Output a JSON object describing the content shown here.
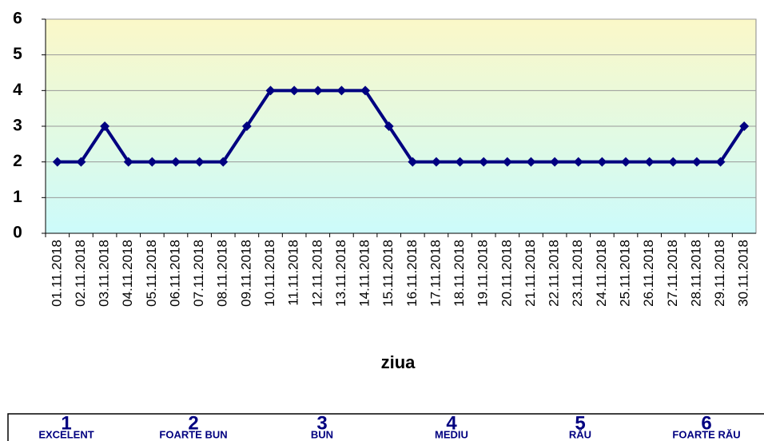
{
  "chart_data": {
    "type": "line",
    "x_label": "ziua",
    "categories": [
      "01.11.2018",
      "02.11.2018",
      "03.11.2018",
      "04.11.2018",
      "05.11.2018",
      "06.11.2018",
      "07.11.2018",
      "08.11.2018",
      "09.11.2018",
      "10.11.2018",
      "11.11.2018",
      "12.11.2018",
      "13.11.2018",
      "14.11.2018",
      "15.11.2018",
      "16.11.2018",
      "17.11.2018",
      "18.11.2018",
      "19.11.2018",
      "20.11.2018",
      "21.11.2018",
      "22.11.2018",
      "23.11.2018",
      "24.11.2018",
      "25.11.2018",
      "26.11.2018",
      "27.11.2018",
      "28.11.2018",
      "29.11.2018",
      "30.11.2018"
    ],
    "values": [
      2,
      2,
      3,
      2,
      2,
      2,
      2,
      2,
      3,
      4,
      4,
      4,
      4,
      4,
      3,
      2,
      2,
      2,
      2,
      2,
      2,
      2,
      2,
      2,
      2,
      2,
      2,
      2,
      2,
      3
    ],
    "color": "#000080",
    "ylim": [
      0,
      6
    ],
    "yticks": [
      0,
      1,
      2,
      3,
      4,
      5,
      6
    ],
    "grid": true
  },
  "legend_table": [
    {
      "value": 1,
      "label": "EXCELENT"
    },
    {
      "value": 2,
      "label": "FOARTE BUN"
    },
    {
      "value": 3,
      "label": "BUN"
    },
    {
      "value": 4,
      "label": "MEDIU"
    },
    {
      "value": 5,
      "label": "RĂU"
    },
    {
      "value": 6,
      "label": "FOARTE RĂU"
    }
  ]
}
